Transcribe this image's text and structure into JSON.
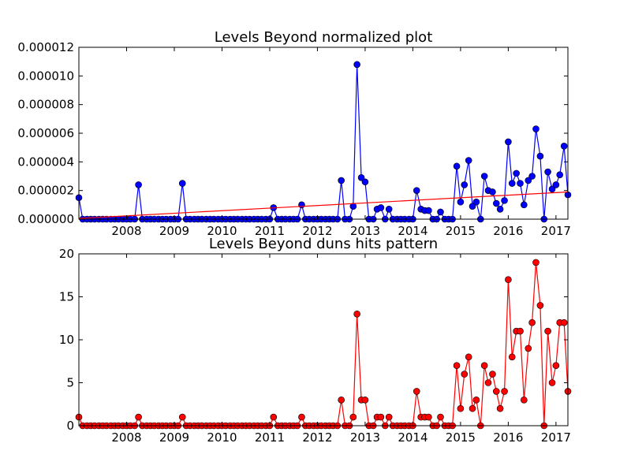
{
  "chart_data": [
    {
      "type": "line",
      "title": "Levels Beyond normalized plot",
      "xlabel": "",
      "ylabel": "",
      "xlim": [
        2007.0,
        2017.25
      ],
      "ylim": [
        0,
        1.2e-05
      ],
      "y_ticks": [
        0,
        2e-06,
        4e-06,
        6e-06,
        8e-06,
        1e-05,
        1.2e-05
      ],
      "y_tick_labels": [
        "0.000000",
        "0.000002",
        "0.000004",
        "0.000006",
        "0.000008",
        "0.000010",
        "0.000012"
      ],
      "x_ticks": [
        2008,
        2009,
        2010,
        2011,
        2012,
        2013,
        2014,
        2015,
        2016,
        2017
      ],
      "x_tick_labels": [
        "2008",
        "2009",
        "2010",
        "2011",
        "2012",
        "2013",
        "2014",
        "2015",
        "2016",
        "2017"
      ],
      "grid": false,
      "legend": "none",
      "series": [
        {
          "color": "#0000ff",
          "marker": "circle",
          "points": [
            [
              2007.0,
              1.5e-06
            ],
            [
              2007.08,
              0
            ],
            [
              2007.17,
              0
            ],
            [
              2007.25,
              0
            ],
            [
              2007.33,
              0
            ],
            [
              2007.42,
              0
            ],
            [
              2007.5,
              0
            ],
            [
              2007.58,
              0
            ],
            [
              2007.67,
              0
            ],
            [
              2007.75,
              0
            ],
            [
              2007.83,
              0
            ],
            [
              2007.92,
              0
            ],
            [
              2008.0,
              0
            ],
            [
              2008.08,
              0
            ],
            [
              2008.17,
              0
            ],
            [
              2008.25,
              2.4e-06
            ],
            [
              2008.33,
              0
            ],
            [
              2008.42,
              0
            ],
            [
              2008.5,
              0
            ],
            [
              2008.58,
              0
            ],
            [
              2008.67,
              0
            ],
            [
              2008.75,
              0
            ],
            [
              2008.83,
              0
            ],
            [
              2008.92,
              0
            ],
            [
              2009.0,
              0
            ],
            [
              2009.08,
              0
            ],
            [
              2009.17,
              2.5e-06
            ],
            [
              2009.25,
              0
            ],
            [
              2009.33,
              0
            ],
            [
              2009.42,
              0
            ],
            [
              2009.5,
              0
            ],
            [
              2009.58,
              0
            ],
            [
              2009.67,
              0
            ],
            [
              2009.75,
              0
            ],
            [
              2009.83,
              0
            ],
            [
              2009.92,
              0
            ],
            [
              2010.0,
              0
            ],
            [
              2010.08,
              0
            ],
            [
              2010.17,
              0
            ],
            [
              2010.25,
              0
            ],
            [
              2010.33,
              0
            ],
            [
              2010.42,
              0
            ],
            [
              2010.5,
              0
            ],
            [
              2010.58,
              0
            ],
            [
              2010.67,
              0
            ],
            [
              2010.75,
              0
            ],
            [
              2010.83,
              0
            ],
            [
              2010.92,
              0
            ],
            [
              2011.0,
              0
            ],
            [
              2011.08,
              8e-07
            ],
            [
              2011.17,
              0
            ],
            [
              2011.25,
              0
            ],
            [
              2011.33,
              0
            ],
            [
              2011.42,
              0
            ],
            [
              2011.5,
              0
            ],
            [
              2011.58,
              0
            ],
            [
              2011.67,
              1e-06
            ],
            [
              2011.75,
              0
            ],
            [
              2011.83,
              0
            ],
            [
              2011.92,
              0
            ],
            [
              2012.0,
              0
            ],
            [
              2012.08,
              0
            ],
            [
              2012.17,
              0
            ],
            [
              2012.25,
              0
            ],
            [
              2012.33,
              0
            ],
            [
              2012.42,
              0
            ],
            [
              2012.5,
              2.7e-06
            ],
            [
              2012.58,
              0
            ],
            [
              2012.67,
              0
            ],
            [
              2012.75,
              9e-07
            ],
            [
              2012.83,
              1.08e-05
            ],
            [
              2012.92,
              2.9e-06
            ],
            [
              2013.0,
              2.6e-06
            ],
            [
              2013.08,
              0
            ],
            [
              2013.17,
              0
            ],
            [
              2013.25,
              7e-07
            ],
            [
              2013.33,
              8e-07
            ],
            [
              2013.42,
              0
            ],
            [
              2013.5,
              7e-07
            ],
            [
              2013.58,
              0
            ],
            [
              2013.67,
              0
            ],
            [
              2013.75,
              0
            ],
            [
              2013.83,
              0
            ],
            [
              2013.92,
              0
            ],
            [
              2014.0,
              0
            ],
            [
              2014.08,
              2e-06
            ],
            [
              2014.17,
              7e-07
            ],
            [
              2014.25,
              6e-07
            ],
            [
              2014.33,
              6e-07
            ],
            [
              2014.42,
              0
            ],
            [
              2014.5,
              0
            ],
            [
              2014.58,
              5e-07
            ],
            [
              2014.67,
              0
            ],
            [
              2014.75,
              0
            ],
            [
              2014.83,
              0
            ],
            [
              2014.92,
              3.7e-06
            ],
            [
              2015.0,
              1.2e-06
            ],
            [
              2015.08,
              2.4e-06
            ],
            [
              2015.17,
              4.1e-06
            ],
            [
              2015.25,
              9e-07
            ],
            [
              2015.33,
              1.2e-06
            ],
            [
              2015.42,
              0
            ],
            [
              2015.5,
              3e-06
            ],
            [
              2015.58,
              2e-06
            ],
            [
              2015.67,
              1.9e-06
            ],
            [
              2015.75,
              1.1e-06
            ],
            [
              2015.83,
              7e-07
            ],
            [
              2015.92,
              1.3e-06
            ],
            [
              2016.0,
              5.4e-06
            ],
            [
              2016.08,
              2.5e-06
            ],
            [
              2016.17,
              3.2e-06
            ],
            [
              2016.25,
              2.5e-06
            ],
            [
              2016.33,
              1e-06
            ],
            [
              2016.42,
              2.7e-06
            ],
            [
              2016.5,
              3e-06
            ],
            [
              2016.58,
              6.3e-06
            ],
            [
              2016.67,
              4.4e-06
            ],
            [
              2016.75,
              0
            ],
            [
              2016.83,
              3.3e-06
            ],
            [
              2016.92,
              2.1e-06
            ],
            [
              2017.0,
              2.4e-06
            ],
            [
              2017.08,
              3.1e-06
            ],
            [
              2017.17,
              5.1e-06
            ],
            [
              2017.25,
              1.7e-06
            ]
          ]
        },
        {
          "color": "#ff0000",
          "marker": "none",
          "points": [
            [
              2007.0,
              5e-08
            ],
            [
              2017.25,
              1.9e-06
            ]
          ]
        }
      ]
    },
    {
      "type": "line",
      "title": "Levels Beyond duns hits pattern",
      "xlabel": "",
      "ylabel": "",
      "xlim": [
        2007.0,
        2017.25
      ],
      "ylim": [
        0,
        20
      ],
      "y_ticks": [
        0,
        5,
        10,
        15,
        20
      ],
      "y_tick_labels": [
        "0",
        "5",
        "10",
        "15",
        "20"
      ],
      "x_ticks": [
        2008,
        2009,
        2010,
        2011,
        2012,
        2013,
        2014,
        2015,
        2016,
        2017
      ],
      "x_tick_labels": [
        "2008",
        "2009",
        "2010",
        "2011",
        "2012",
        "2013",
        "2014",
        "2015",
        "2016",
        "2017"
      ],
      "grid": false,
      "legend": "none",
      "series": [
        {
          "color": "#ff0000",
          "marker": "circle",
          "points": [
            [
              2007.0,
              1
            ],
            [
              2007.08,
              0
            ],
            [
              2007.17,
              0
            ],
            [
              2007.25,
              0
            ],
            [
              2007.33,
              0
            ],
            [
              2007.42,
              0
            ],
            [
              2007.5,
              0
            ],
            [
              2007.58,
              0
            ],
            [
              2007.67,
              0
            ],
            [
              2007.75,
              0
            ],
            [
              2007.83,
              0
            ],
            [
              2007.92,
              0
            ],
            [
              2008.0,
              0
            ],
            [
              2008.08,
              0
            ],
            [
              2008.17,
              0
            ],
            [
              2008.25,
              1
            ],
            [
              2008.33,
              0
            ],
            [
              2008.42,
              0
            ],
            [
              2008.5,
              0
            ],
            [
              2008.58,
              0
            ],
            [
              2008.67,
              0
            ],
            [
              2008.75,
              0
            ],
            [
              2008.83,
              0
            ],
            [
              2008.92,
              0
            ],
            [
              2009.0,
              0
            ],
            [
              2009.08,
              0
            ],
            [
              2009.17,
              1
            ],
            [
              2009.25,
              0
            ],
            [
              2009.33,
              0
            ],
            [
              2009.42,
              0
            ],
            [
              2009.5,
              0
            ],
            [
              2009.58,
              0
            ],
            [
              2009.67,
              0
            ],
            [
              2009.75,
              0
            ],
            [
              2009.83,
              0
            ],
            [
              2009.92,
              0
            ],
            [
              2010.0,
              0
            ],
            [
              2010.08,
              0
            ],
            [
              2010.17,
              0
            ],
            [
              2010.25,
              0
            ],
            [
              2010.33,
              0
            ],
            [
              2010.42,
              0
            ],
            [
              2010.5,
              0
            ],
            [
              2010.58,
              0
            ],
            [
              2010.67,
              0
            ],
            [
              2010.75,
              0
            ],
            [
              2010.83,
              0
            ],
            [
              2010.92,
              0
            ],
            [
              2011.0,
              0
            ],
            [
              2011.08,
              1
            ],
            [
              2011.17,
              0
            ],
            [
              2011.25,
              0
            ],
            [
              2011.33,
              0
            ],
            [
              2011.42,
              0
            ],
            [
              2011.5,
              0
            ],
            [
              2011.58,
              0
            ],
            [
              2011.67,
              1
            ],
            [
              2011.75,
              0
            ],
            [
              2011.83,
              0
            ],
            [
              2011.92,
              0
            ],
            [
              2012.0,
              0
            ],
            [
              2012.08,
              0
            ],
            [
              2012.17,
              0
            ],
            [
              2012.25,
              0
            ],
            [
              2012.33,
              0
            ],
            [
              2012.42,
              0
            ],
            [
              2012.5,
              3
            ],
            [
              2012.58,
              0
            ],
            [
              2012.67,
              0
            ],
            [
              2012.75,
              1
            ],
            [
              2012.83,
              13
            ],
            [
              2012.92,
              3
            ],
            [
              2013.0,
              3
            ],
            [
              2013.08,
              0
            ],
            [
              2013.17,
              0
            ],
            [
              2013.25,
              1
            ],
            [
              2013.33,
              1
            ],
            [
              2013.42,
              0
            ],
            [
              2013.5,
              1
            ],
            [
              2013.58,
              0
            ],
            [
              2013.67,
              0
            ],
            [
              2013.75,
              0
            ],
            [
              2013.83,
              0
            ],
            [
              2013.92,
              0
            ],
            [
              2014.0,
              0
            ],
            [
              2014.08,
              4
            ],
            [
              2014.17,
              1
            ],
            [
              2014.25,
              1
            ],
            [
              2014.33,
              1
            ],
            [
              2014.42,
              0
            ],
            [
              2014.5,
              0
            ],
            [
              2014.58,
              1
            ],
            [
              2014.67,
              0
            ],
            [
              2014.75,
              0
            ],
            [
              2014.83,
              0
            ],
            [
              2014.92,
              7
            ],
            [
              2015.0,
              2
            ],
            [
              2015.08,
              6
            ],
            [
              2015.17,
              8
            ],
            [
              2015.25,
              2
            ],
            [
              2015.33,
              3
            ],
            [
              2015.42,
              0
            ],
            [
              2015.5,
              7
            ],
            [
              2015.58,
              5
            ],
            [
              2015.67,
              6
            ],
            [
              2015.75,
              4
            ],
            [
              2015.83,
              2
            ],
            [
              2015.92,
              4
            ],
            [
              2016.0,
              17
            ],
            [
              2016.08,
              8
            ],
            [
              2016.17,
              11
            ],
            [
              2016.25,
              11
            ],
            [
              2016.33,
              3
            ],
            [
              2016.42,
              9
            ],
            [
              2016.5,
              12
            ],
            [
              2016.58,
              19
            ],
            [
              2016.67,
              14
            ],
            [
              2016.75,
              0
            ],
            [
              2016.83,
              11
            ],
            [
              2016.92,
              5
            ],
            [
              2017.0,
              7
            ],
            [
              2017.08,
              12
            ],
            [
              2017.17,
              12
            ],
            [
              2017.25,
              4
            ]
          ]
        }
      ]
    }
  ]
}
